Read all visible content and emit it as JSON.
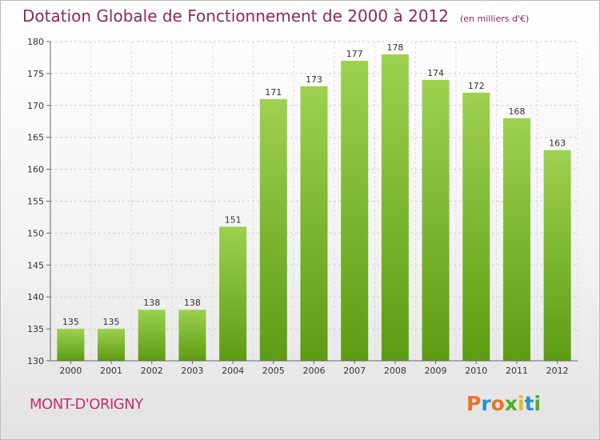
{
  "header": {
    "title": "Dotation Globale de Fonctionnement de 2000 à 2012",
    "subtitle": "(en milliers d'€)"
  },
  "footer": {
    "commune": "MONT-D'ORIGNY",
    "logo_text": "Proxiti"
  },
  "colors": {
    "title": "#8a2a5e",
    "commune": "#c0306e",
    "bar_light": "#9dd14f",
    "bar_dark": "#5d9c12",
    "logo_letters": [
      "#e8732b",
      "#2d8fd2",
      "#e8732b",
      "#4caf2a",
      "#e8b52b",
      "#2d8fd2",
      "#4caf2a"
    ]
  },
  "chart_data": {
    "type": "bar",
    "title": "Dotation Globale de Fonctionnement de 2000 à 2012",
    "subtitle": "(en milliers d'€)",
    "categories": [
      "2000",
      "2001",
      "2002",
      "2003",
      "2004",
      "2005",
      "2006",
      "2007",
      "2008",
      "2009",
      "2010",
      "2011",
      "2012"
    ],
    "values": [
      135,
      135,
      138,
      138,
      151,
      171,
      173,
      177,
      178,
      174,
      172,
      168,
      163
    ],
    "ylim": [
      130,
      180
    ],
    "yticks": [
      130,
      135,
      140,
      145,
      150,
      155,
      160,
      165,
      170,
      175,
      180
    ],
    "grid": true,
    "data_labels": true
  }
}
